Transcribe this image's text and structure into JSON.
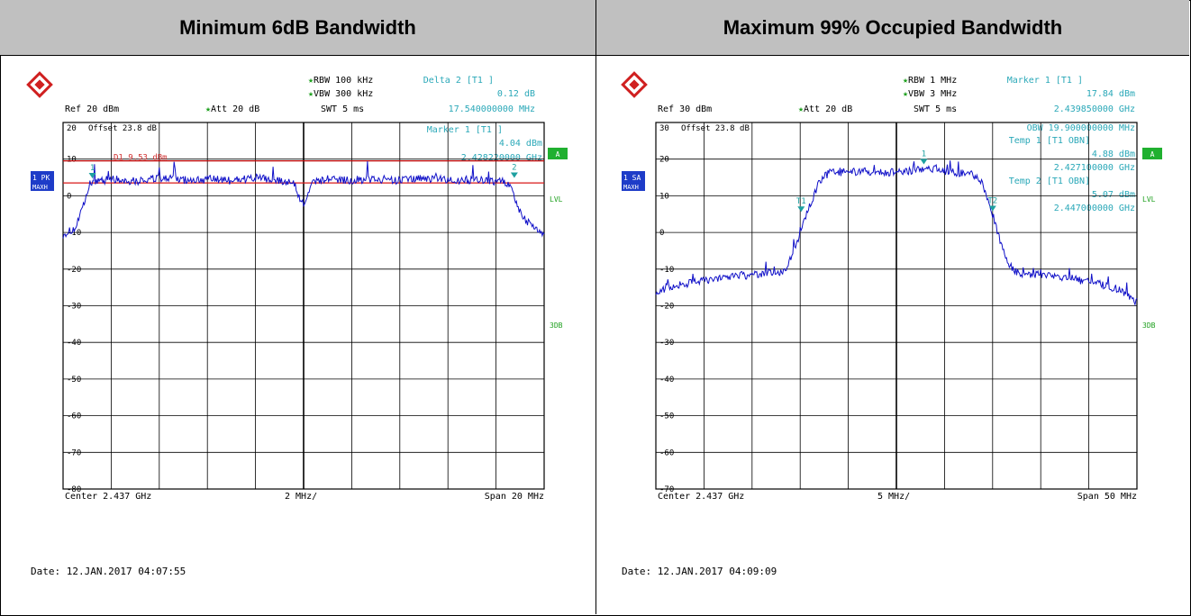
{
  "panels": [
    {
      "title": "Minimum 6dB Bandwidth",
      "settings": {
        "rbw": "RBW 100 kHz",
        "vbw": "VBW 300 kHz",
        "ref": "Ref  20 dBm",
        "att": "Att  20 dB",
        "swt": "SWT 5 ms",
        "offset": "Offset  23.8 dB",
        "trace_label": "1 PK",
        "trace_mode": "MAXH"
      },
      "marker_info": [
        "Delta 2 [T1 ]",
        "0.12 dB",
        "17.540000000 MHz",
        "Marker 1 [T1 ]",
        "4.04 dBm",
        "2.428220000 GHz"
      ],
      "annotations": {
        "d1": "D1  9.53 dBm",
        "marker1": "1",
        "marker2": "2",
        "side_a": "A",
        "side_lvl": "LVL",
        "side_3db": "3DB"
      },
      "footer": {
        "center": "Center 2.437 GHz",
        "div": "2 MHz/",
        "span": "Span 20 MHz",
        "date": "Date: 12.JAN.2017  04:07:55"
      },
      "chart_data": {
        "type": "line",
        "xlabel": "",
        "ylabel": "",
        "x_unit": "MHz",
        "xlim": [
          2427,
          2447
        ],
        "ylim": [
          -80,
          20
        ],
        "yticks": [
          "20",
          "10",
          "0",
          "-10",
          "-20",
          "-30",
          "-40",
          "-50",
          "-60",
          "-70",
          "-80"
        ],
        "grid": true,
        "reference_lines": [
          {
            "name": "D1",
            "y": 9.53,
            "color": "#c00000"
          },
          {
            "name": "6dB",
            "y": 3.5,
            "color": "#d81818"
          }
        ],
        "series": [
          {
            "color": "#1010c8",
            "x": [
              2427.0,
              2427.5,
              2427.9,
              2428.1,
              2428.25,
              2428.5,
              2429,
              2430,
              2431,
              2432,
              2433,
              2434,
              2435,
              2436,
              2436.6,
              2436.9,
              2437.1,
              2437.4,
              2438,
              2439,
              2440,
              2441,
              2442,
              2443,
              2444,
              2445,
              2445.6,
              2445.8,
              2446.2,
              2446.6,
              2447.0
            ],
            "y": [
              -10.5,
              -9,
              -2,
              3,
              4.2,
              4.1,
              4.6,
              4.0,
              4.8,
              4.3,
              4.5,
              4.2,
              4.9,
              4.0,
              3.6,
              -2.0,
              -1.5,
              4.0,
              4.5,
              4.3,
              4.6,
              4.1,
              4.8,
              4.2,
              4.4,
              4.0,
              3.4,
              -1.5,
              -6.5,
              -8.5,
              -11.0
            ]
          }
        ],
        "markers": [
          {
            "name": "1",
            "x": 2428.22,
            "y": 4.04
          },
          {
            "name": "2",
            "x": 2445.76,
            "y": 4.16
          }
        ]
      }
    },
    {
      "title": "Maximum 99% Occupied Bandwidth",
      "settings": {
        "rbw": "RBW 1 MHz",
        "vbw": "VBW 3 MHz",
        "ref": "Ref  30 dBm",
        "att": "Att  20 dB",
        "swt": "SWT 5 ms",
        "offset": "Offset  23.8 dB",
        "trace_label": "1 SA",
        "trace_mode": "MAXH"
      },
      "marker_info": [
        "Marker 1 [T1 ]",
        "17.84 dBm",
        "2.439850000 GHz",
        "OBW 19.900000000 MHz",
        "Temp 1 [T1 OBN]",
        "4.88 dBm",
        "2.427100000 GHz",
        "Temp 2 [T1 OBN]",
        "5.07 dBm",
        "2.447000000 GHz"
      ],
      "annotations": {
        "marker1": "1",
        "t1": "T1",
        "t2": "T2",
        "side_a": "A",
        "side_lvl": "LVL",
        "side_3db": "3DB"
      },
      "footer": {
        "center": "Center 2.437 GHz",
        "div": "5 MHz/",
        "span": "Span 50 MHz",
        "date": "Date: 12.JAN.2017  04:09:09"
      },
      "chart_data": {
        "type": "line",
        "xlabel": "",
        "ylabel": "",
        "x_unit": "MHz",
        "xlim": [
          2412,
          2462
        ],
        "ylim": [
          -70,
          30
        ],
        "yticks": [
          "30",
          "20",
          "10",
          "0",
          "-10",
          "-20",
          "-30",
          "-40",
          "-50",
          "-60",
          "-70"
        ],
        "grid": true,
        "series": [
          {
            "color": "#1010c8",
            "x": [
              2412,
              2414,
              2416,
              2418,
              2420,
              2422,
              2424,
              2425.5,
              2426.5,
              2427.5,
              2428.3,
              2429,
              2430,
              2432,
              2434,
              2436,
              2438,
              2440,
              2442,
              2444,
              2445,
              2446,
              2447,
              2448,
              2448.8,
              2449.5,
              2452,
              2455,
              2458,
              2460,
              2462
            ],
            "y": [
              -16,
              -14.5,
              -13.5,
              -12.5,
              -12,
              -11.5,
              -11,
              -10.5,
              -4,
              4,
              9,
              14,
              16.2,
              16.5,
              16.8,
              16.2,
              16.8,
              17.4,
              16.8,
              16.2,
              15.8,
              13,
              5,
              -4,
              -9,
              -11,
              -11.5,
              -12.5,
              -14,
              -15.5,
              -19
            ]
          }
        ],
        "markers": [
          {
            "name": "1",
            "x": 2439.85,
            "y": 17.84
          },
          {
            "name": "T1",
            "x": 2427.1,
            "y": 4.88
          },
          {
            "name": "T2",
            "x": 2447.0,
            "y": 5.07
          }
        ]
      }
    }
  ]
}
